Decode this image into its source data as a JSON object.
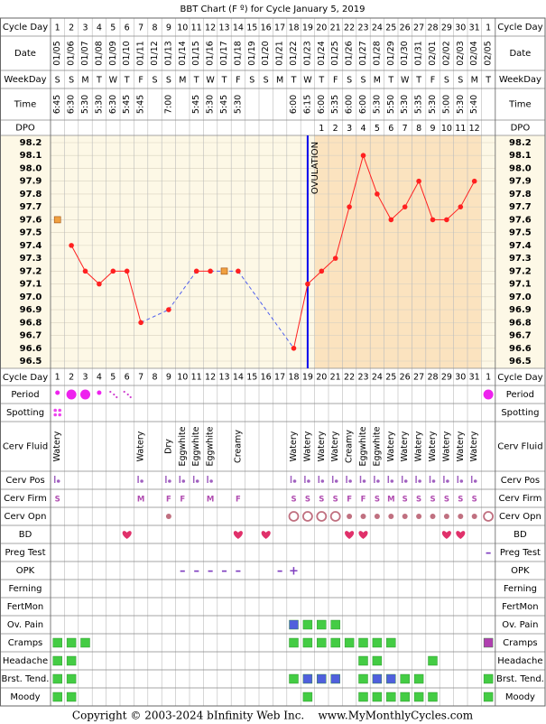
{
  "title": "BBT Chart (F º) for Cycle January 5, 2019",
  "header_rows": [
    {
      "label": "Cycle Day",
      "values": [
        1,
        2,
        3,
        4,
        5,
        6,
        7,
        8,
        9,
        10,
        11,
        12,
        13,
        14,
        15,
        16,
        17,
        18,
        19,
        20,
        21,
        22,
        23,
        24,
        25,
        26,
        27,
        28,
        29,
        30,
        31,
        1
      ]
    },
    {
      "label": "Date",
      "values": [
        "01/05",
        "01/06",
        "01/07",
        "01/08",
        "01/09",
        "01/10",
        "01/11",
        "01/12",
        "01/13",
        "01/14",
        "01/15",
        "01/16",
        "01/17",
        "01/18",
        "01/19",
        "01/20",
        "01/21",
        "01/22",
        "01/23",
        "01/24",
        "01/25",
        "01/26",
        "01/27",
        "01/28",
        "01/29",
        "01/30",
        "01/31",
        "02/01",
        "02/02",
        "02/03",
        "02/04",
        "02/05"
      ]
    },
    {
      "label": "WeekDay",
      "values": [
        "S",
        "S",
        "M",
        "T",
        "W",
        "T",
        "F",
        "S",
        "S",
        "M",
        "T",
        "W",
        "T",
        "F",
        "S",
        "S",
        "M",
        "T",
        "W",
        "T",
        "F",
        "S",
        "S",
        "M",
        "T",
        "W",
        "T",
        "F",
        "S",
        "S",
        "M",
        "T"
      ]
    },
    {
      "label": "Time",
      "values": [
        "6:45",
        "6:30",
        "5:30",
        "5:30",
        "6:30",
        "5:45",
        "5:45",
        null,
        "7:00",
        null,
        "5:45",
        "5:30",
        "5:45",
        "5:30",
        null,
        null,
        null,
        "6:00",
        "6:15",
        "6:00",
        "5:35",
        "6:00",
        "6:00",
        "5:30",
        "5:50",
        "5:30",
        "5:35",
        "5:30",
        "5:00",
        "5:30",
        "5:40",
        null
      ]
    },
    {
      "label": "DPO",
      "values": [
        null,
        null,
        null,
        null,
        null,
        null,
        null,
        null,
        null,
        null,
        null,
        null,
        null,
        null,
        null,
        null,
        null,
        null,
        null,
        1,
        2,
        3,
        4,
        5,
        6,
        7,
        8,
        9,
        10,
        11,
        12,
        null
      ]
    }
  ],
  "chart_data": {
    "type": "line",
    "ylim": [
      96.5,
      98.2
    ],
    "yticks": [
      98.2,
      98.1,
      {
        "value": 98,
        "label": "98.0"
      },
      97.9,
      97.8,
      97.7,
      97.6,
      97.5,
      97.4,
      97.3,
      97.2,
      97.1,
      {
        "value": 97,
        "label": "97.0"
      },
      96.9,
      96.8,
      96.7,
      96.6,
      96.5
    ],
    "series": [
      {
        "color": "#ff2020",
        "values": [
          null,
          97.4,
          97.2,
          97.1,
          97.2,
          97.2,
          96.8,
          null,
          96.9,
          null,
          97.2,
          97.2,
          null,
          97.2,
          null,
          null,
          null,
          96.6,
          97.1,
          97.2,
          97.3,
          97.7,
          98.1,
          97.8,
          97.6,
          97.7,
          97.9,
          97.6,
          97.6,
          97.7,
          97.9,
          null
        ]
      },
      {
        "color": "#f0a040",
        "values": [
          97.6,
          null,
          null,
          null,
          null,
          null,
          null,
          null,
          null,
          null,
          null,
          null,
          97.2,
          null,
          null,
          null,
          null,
          null,
          null,
          null,
          null,
          null,
          null,
          null,
          null,
          null,
          null,
          null,
          null,
          null,
          null,
          null
        ]
      }
    ],
    "ovulation": {
      "label": "OVULATION",
      "day": 19,
      "color": "#0000ee"
    }
  },
  "rows": [
    {
      "label": "Period",
      "values": [
        "s",
        "l",
        "l",
        "s",
        "spot",
        "spot",
        null,
        null,
        null,
        null,
        null,
        null,
        null,
        null,
        null,
        null,
        null,
        null,
        null,
        null,
        null,
        null,
        null,
        null,
        null,
        null,
        null,
        null,
        null,
        null,
        null,
        "l"
      ]
    },
    {
      "label": "Spotting",
      "values": [
        "spot4",
        null,
        null,
        null,
        null,
        null,
        null,
        null,
        null,
        null,
        null,
        null,
        null,
        null,
        null,
        null,
        null,
        null,
        null,
        null,
        null,
        null,
        null,
        null,
        null,
        null,
        null,
        null,
        null,
        null,
        null,
        null
      ]
    },
    {
      "label": "Cerv Fluid",
      "values": [
        "Watery",
        null,
        null,
        null,
        null,
        null,
        "Watery",
        null,
        "Dry",
        "Eggwhite",
        "Eggwhite",
        "Eggwhite",
        null,
        "Creamy",
        null,
        null,
        null,
        "Watery",
        "Watery",
        "Watery",
        "Watery",
        "Creamy",
        "Eggwhite",
        "Eggwhite",
        "Watery",
        "Watery",
        "Watery",
        "Watery",
        "Watery",
        "Watery",
        "Watery",
        null
      ]
    },
    {
      "label": "Cerv Pos",
      "values": [
        "pos",
        null,
        null,
        null,
        null,
        null,
        "pos",
        null,
        "pos",
        "pos",
        "pos",
        "pos",
        null,
        null,
        null,
        null,
        null,
        "pos",
        "pos",
        "pos",
        "pos",
        "pos",
        "pos",
        "pos",
        "pos",
        "pos",
        "pos",
        "pos",
        "pos",
        "pos",
        "pos",
        null
      ]
    },
    {
      "label": "Cerv Firm",
      "values": [
        "S",
        null,
        null,
        null,
        null,
        null,
        "M",
        null,
        "F",
        "F",
        null,
        "M",
        null,
        "F",
        null,
        null,
        null,
        "S",
        "S",
        "S",
        "S",
        "F",
        "F",
        "S",
        "M",
        "S",
        "S",
        "S",
        "S",
        "S",
        "S",
        null
      ]
    },
    {
      "label": "Cerv Opn",
      "values": [
        null,
        null,
        null,
        null,
        null,
        null,
        null,
        null,
        "dot",
        null,
        null,
        null,
        null,
        null,
        null,
        null,
        null,
        "ring",
        "ring",
        "ring",
        "ring",
        "dot",
        "dot",
        "dot",
        "dot",
        "dot",
        "dot",
        "dot",
        "dot",
        "dot",
        "dot",
        "ring"
      ]
    },
    {
      "label": "BD",
      "values": [
        null,
        null,
        null,
        null,
        null,
        "heart",
        null,
        null,
        null,
        null,
        null,
        null,
        null,
        "heart",
        null,
        "heart",
        null,
        null,
        null,
        null,
        null,
        "heart",
        "heart",
        null,
        null,
        null,
        null,
        null,
        "heart",
        "heart",
        null,
        null
      ]
    },
    {
      "label": "Preg Test",
      "values": [
        null,
        null,
        null,
        null,
        null,
        null,
        null,
        null,
        null,
        null,
        null,
        null,
        null,
        null,
        null,
        null,
        null,
        null,
        null,
        null,
        null,
        null,
        null,
        null,
        null,
        null,
        null,
        null,
        null,
        null,
        null,
        "–"
      ]
    },
    {
      "label": "OPK",
      "values": [
        null,
        null,
        null,
        null,
        null,
        null,
        null,
        null,
        null,
        "–",
        "–",
        "–",
        "–",
        "–",
        null,
        null,
        "–",
        "+",
        null,
        null,
        null,
        null,
        null,
        null,
        null,
        null,
        null,
        null,
        null,
        null,
        null,
        null
      ]
    },
    {
      "label": "Ferning",
      "values": [
        null,
        null,
        null,
        null,
        null,
        null,
        null,
        null,
        null,
        null,
        null,
        null,
        null,
        null,
        null,
        null,
        null,
        null,
        null,
        null,
        null,
        null,
        null,
        null,
        null,
        null,
        null,
        null,
        null,
        null,
        null,
        null
      ]
    },
    {
      "label": "FertMon",
      "values": [
        null,
        null,
        null,
        null,
        null,
        null,
        null,
        null,
        null,
        null,
        null,
        null,
        null,
        null,
        null,
        null,
        null,
        null,
        null,
        null,
        null,
        null,
        null,
        null,
        null,
        null,
        null,
        null,
        null,
        null,
        null,
        null
      ]
    },
    {
      "label": "Ov. Pain",
      "values": [
        null,
        null,
        null,
        null,
        null,
        null,
        null,
        null,
        null,
        null,
        null,
        null,
        null,
        null,
        null,
        null,
        null,
        "b",
        "g",
        "g",
        "g",
        null,
        null,
        null,
        null,
        null,
        null,
        null,
        null,
        null,
        null,
        null
      ]
    },
    {
      "label": "Cramps",
      "values": [
        "g",
        "g",
        "g",
        null,
        null,
        null,
        null,
        null,
        null,
        null,
        null,
        null,
        null,
        null,
        null,
        null,
        null,
        "g",
        "g",
        "g",
        "g",
        "g",
        "g",
        "g",
        "g",
        null,
        null,
        null,
        null,
        null,
        null,
        "p"
      ]
    },
    {
      "label": "Headache",
      "values": [
        "g",
        "g",
        null,
        null,
        null,
        null,
        null,
        null,
        null,
        null,
        null,
        null,
        null,
        null,
        null,
        null,
        null,
        null,
        null,
        null,
        null,
        null,
        "g",
        "g",
        null,
        null,
        null,
        "g",
        null,
        null,
        null,
        null
      ]
    },
    {
      "label": "Brst. Tend.",
      "values": [
        "g",
        "g",
        null,
        null,
        null,
        null,
        null,
        null,
        null,
        null,
        null,
        null,
        null,
        null,
        null,
        null,
        null,
        "g",
        "b",
        "b",
        "b",
        null,
        "g",
        "b",
        "b",
        "g",
        "g",
        null,
        null,
        null,
        null,
        "g"
      ]
    },
    {
      "label": "Moody",
      "values": [
        "g",
        "g",
        null,
        null,
        null,
        null,
        null,
        null,
        null,
        null,
        null,
        null,
        null,
        null,
        null,
        null,
        null,
        null,
        "g",
        null,
        null,
        null,
        "g",
        "g",
        "g",
        "g",
        "g",
        "g",
        null,
        null,
        null,
        "g"
      ]
    }
  ],
  "footer": "Copyright © 2003-2024 bInfinity Web Inc.    www.MyMonthlyCycles.com"
}
